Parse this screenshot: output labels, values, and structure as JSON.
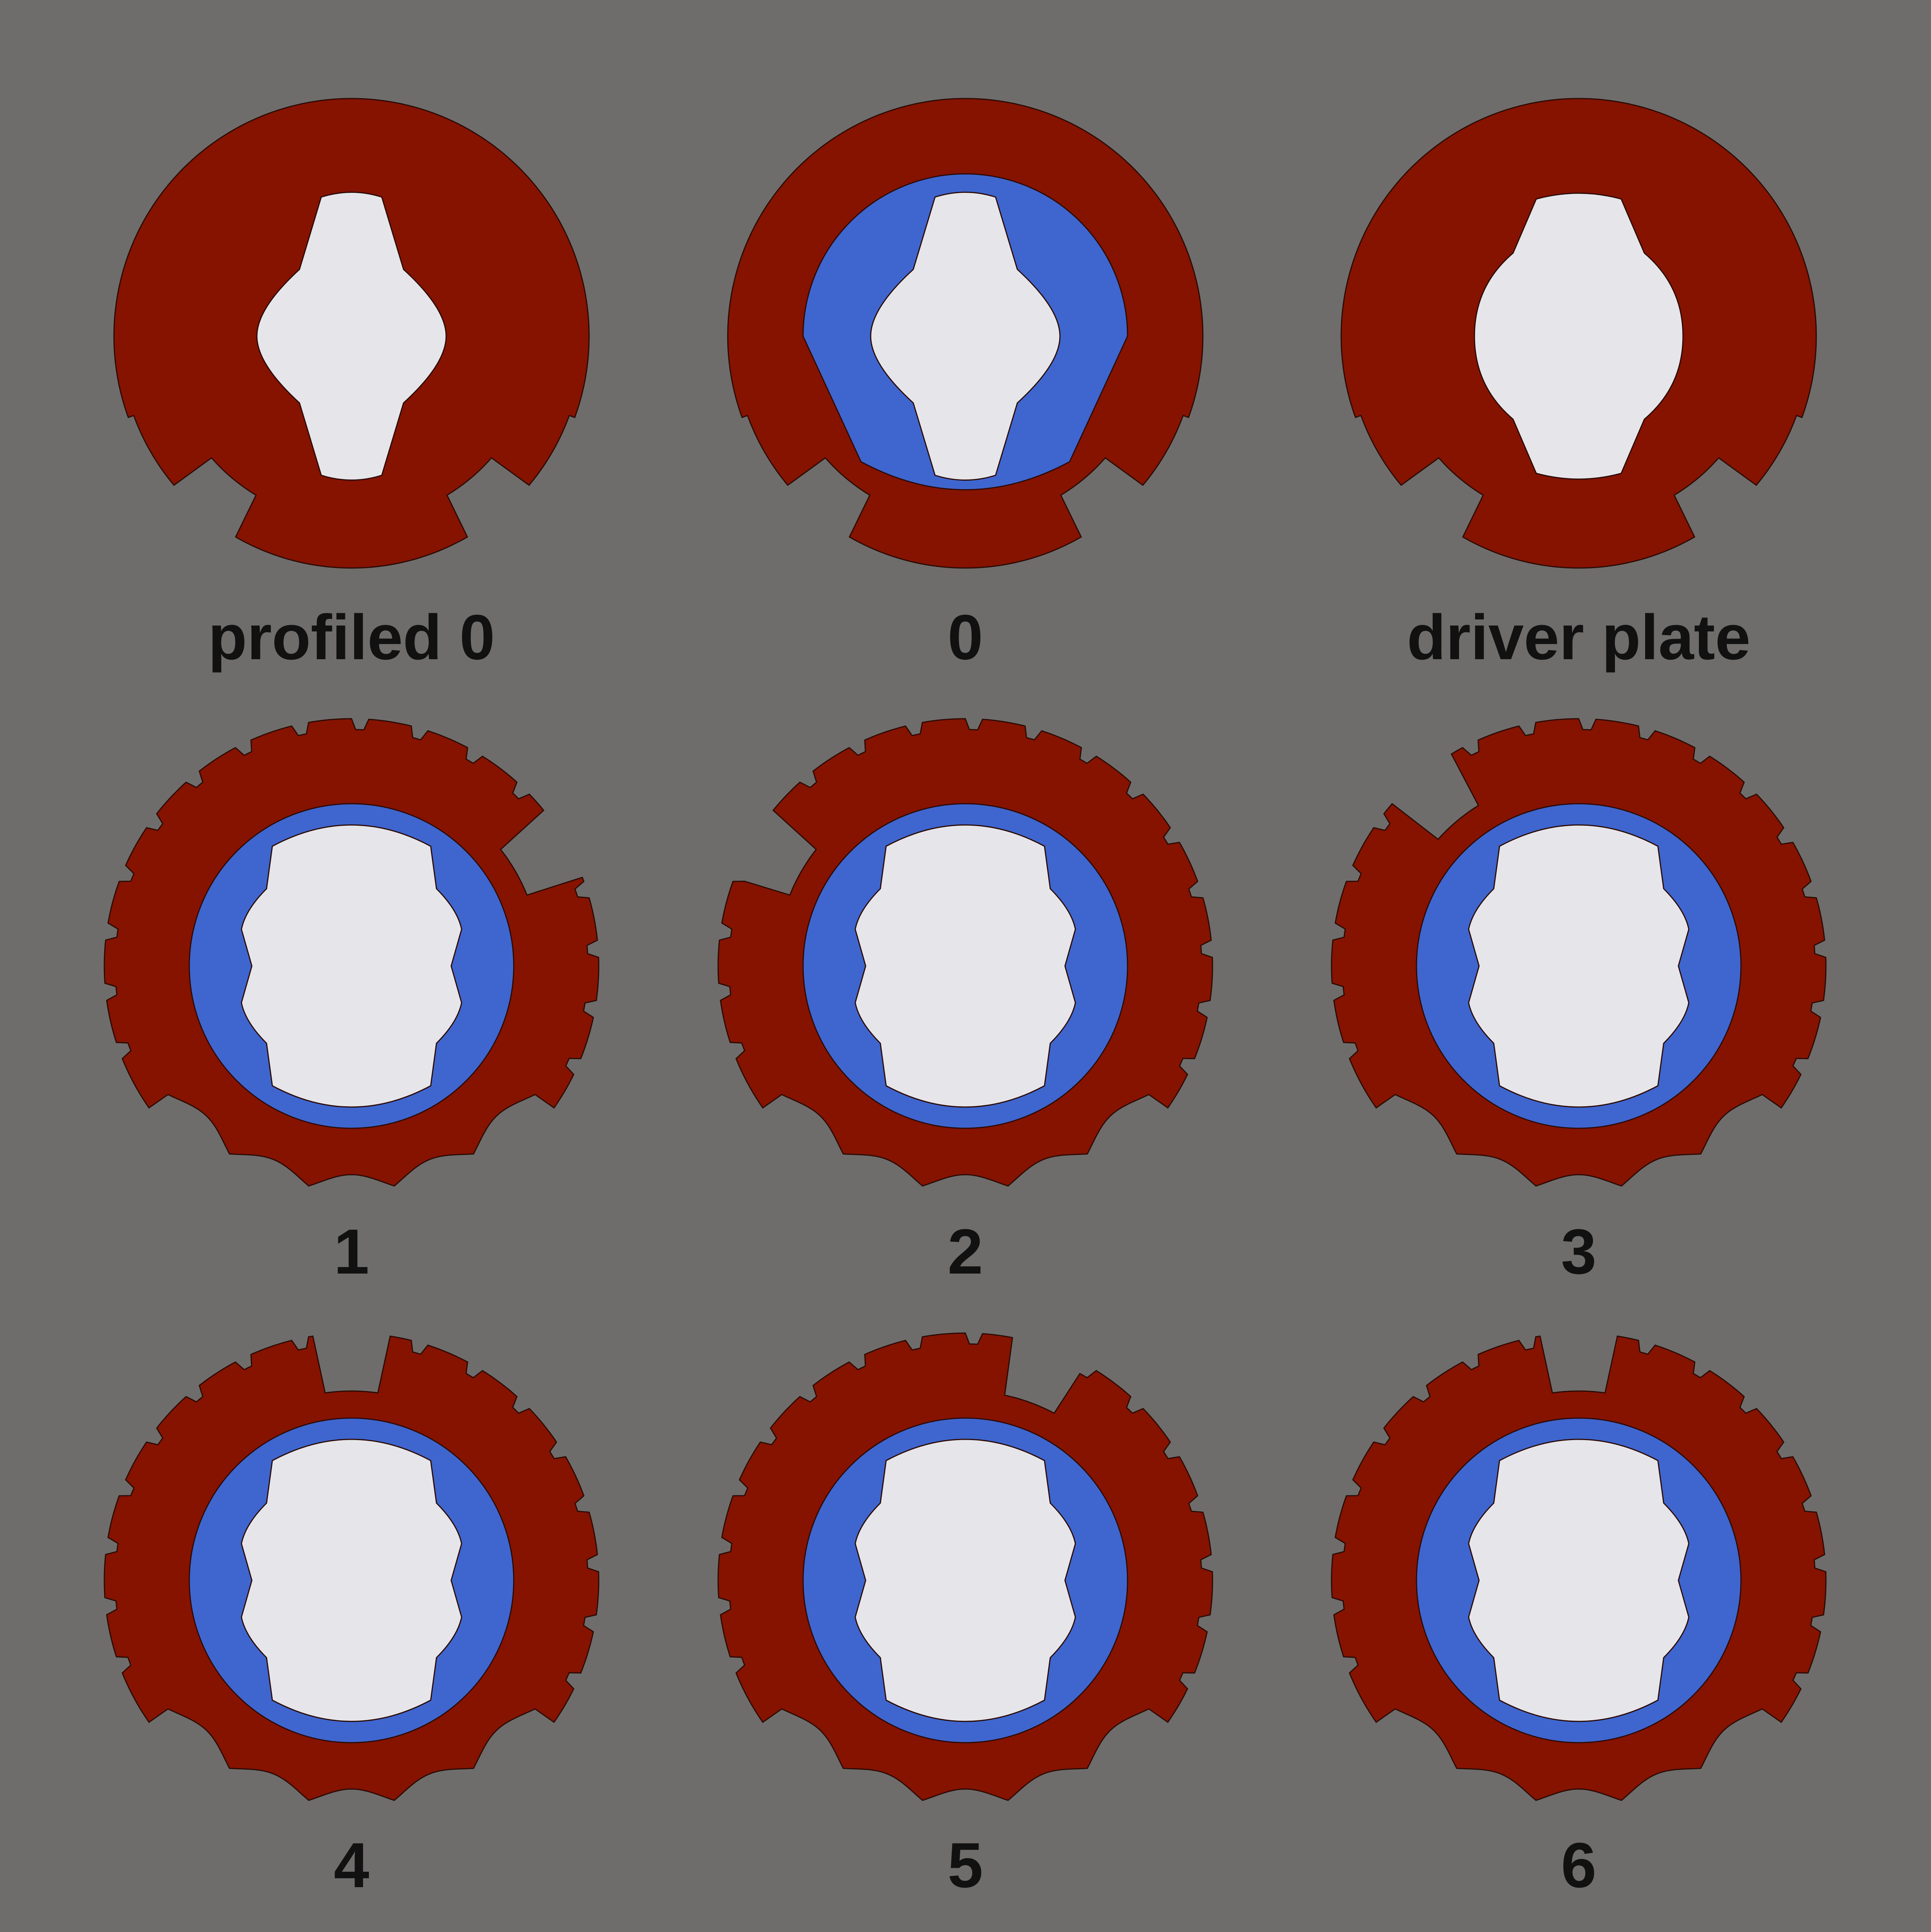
{
  "colors": {
    "background": "#6e6d6b",
    "plate": "#861300",
    "insert": "#3f66cf",
    "bore": "#e6e5ea",
    "outline": "#2a0a05",
    "label": "#111111"
  },
  "plates": [
    {
      "id": "profiled-0",
      "label": "profiled 0",
      "type": "profiled-disc",
      "blue_insert": false
    },
    {
      "id": "zero",
      "label": "0",
      "type": "disc-with-insert",
      "blue_insert": true
    },
    {
      "id": "driver-plate",
      "label": "driver plate",
      "type": "driver",
      "blue_insert": false
    },
    {
      "id": "plate-1",
      "label": "1",
      "type": "code-wheel",
      "blue_insert": true
    },
    {
      "id": "plate-2",
      "label": "2",
      "type": "code-wheel",
      "blue_insert": true
    },
    {
      "id": "plate-3",
      "label": "3",
      "type": "code-wheel",
      "blue_insert": true
    },
    {
      "id": "plate-4",
      "label": "4",
      "type": "code-wheel",
      "blue_insert": true
    },
    {
      "id": "plate-5",
      "label": "5",
      "type": "code-wheel",
      "blue_insert": true
    },
    {
      "id": "plate-6",
      "label": "6",
      "type": "code-wheel",
      "blue_insert": true
    }
  ]
}
